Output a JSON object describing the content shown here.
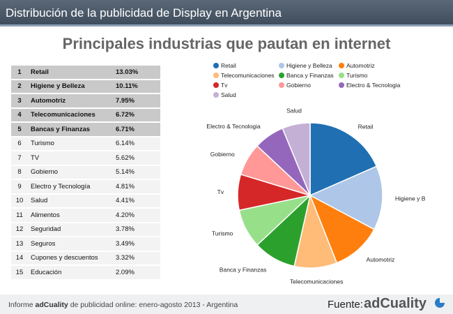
{
  "header": {
    "title": "Distribución de la publicidad de Display en Argentina"
  },
  "subtitle": "Principales industrias que pautan en internet",
  "table": {
    "rows": [
      {
        "rank": "1",
        "name": "Retail",
        "pct": "13.03%",
        "bold": true
      },
      {
        "rank": "2",
        "name": "Higiene y Belleza",
        "pct": "10.11%",
        "bold": true
      },
      {
        "rank": "3",
        "name": "Automotriz",
        "pct": "7.95%",
        "bold": true
      },
      {
        "rank": "4",
        "name": "Telecomunicaciones",
        "pct": "6.72%",
        "bold": true
      },
      {
        "rank": "5",
        "name": "Bancas y Finanzas",
        "pct": "6.71%",
        "bold": true
      },
      {
        "rank": "6",
        "name": "Turismo",
        "pct": "6.14%",
        "bold": false
      },
      {
        "rank": "7",
        "name": "TV",
        "pct": "5.62%",
        "bold": false
      },
      {
        "rank": "8",
        "name": "Gobierno",
        "pct": "5.14%",
        "bold": false
      },
      {
        "rank": "9",
        "name": "Electro y Tecnología",
        "pct": "4.81%",
        "bold": false
      },
      {
        "rank": "10",
        "name": "Salud",
        "pct": "4.41%",
        "bold": false
      },
      {
        "rank": "11",
        "name": "Alimentos",
        "pct": "4.20%",
        "bold": false
      },
      {
        "rank": "12",
        "name": "Seguridad",
        "pct": "3.78%",
        "bold": false
      },
      {
        "rank": "13",
        "name": "Seguros",
        "pct": "3.49%",
        "bold": false
      },
      {
        "rank": "14",
        "name": "Cupones y descuentos",
        "pct": "3.32%",
        "bold": false
      },
      {
        "rank": "15",
        "name": "Educación",
        "pct": "2.09%",
        "bold": false
      }
    ]
  },
  "chart_data": {
    "type": "pie",
    "legend_position": "top",
    "slices": [
      {
        "label": "Retail",
        "value": 13.03,
        "color": "#1f6fb2"
      },
      {
        "label": "Higiene y Belleza",
        "value": 10.11,
        "color": "#aec6e8"
      },
      {
        "label": "Automotriz",
        "value": 7.95,
        "color": "#ff7f0e"
      },
      {
        "label": "Telecomunicaciones",
        "value": 6.72,
        "color": "#ffbb78"
      },
      {
        "label": "Banca y Finanzas",
        "value": 6.71,
        "color": "#2ca02c"
      },
      {
        "label": "Turismo",
        "value": 6.14,
        "color": "#98df8a"
      },
      {
        "label": "Tv",
        "value": 5.62,
        "color": "#d62728"
      },
      {
        "label": "Gobierno",
        "value": 5.14,
        "color": "#ff9896"
      },
      {
        "label": "Electro & Tecnologia",
        "value": 4.81,
        "color": "#9467bd"
      },
      {
        "label": "Salud",
        "value": 4.41,
        "color": "#c5b0d5"
      }
    ],
    "legend_labels": [
      "Retail",
      "Higiene y Belleza",
      "Automotriz",
      "Telecomunicaciones",
      "Banca y Finanzas",
      "Turismo",
      "Tv",
      "Gobierno",
      "Electro & Tecnologia",
      "Salud"
    ]
  },
  "footer": {
    "report_prefix": "Informe ",
    "report_brand": "adCuality",
    "report_suffix": " de publicidad online: enero-agosto 2013 - Argentina",
    "fuente_label": "Fuente:",
    "brand": "adCuality",
    "logo_icon": "pie-logo-icon"
  }
}
